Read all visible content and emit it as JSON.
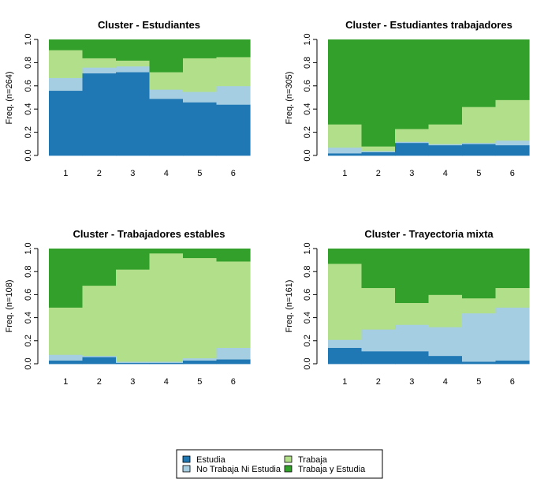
{
  "chart_data": [
    {
      "type": "area",
      "stacked": true,
      "title": "Cluster -  Estudiantes",
      "ylabel": "Freq. (n=264)",
      "categories": [
        "1",
        "2",
        "3",
        "4",
        "5",
        "6"
      ],
      "ylim": [
        0,
        1
      ],
      "yticks": [
        "0.0",
        "0.2",
        "0.4",
        "0.6",
        "0.8",
        "1.0"
      ],
      "series": [
        {
          "name": "Estudia",
          "values": [
            0.56,
            0.71,
            0.72,
            0.49,
            0.46,
            0.44
          ]
        },
        {
          "name": "No Trabaja Ni Estudia",
          "values": [
            0.11,
            0.05,
            0.05,
            0.08,
            0.09,
            0.16
          ]
        },
        {
          "name": "Trabaja",
          "values": [
            0.24,
            0.08,
            0.05,
            0.15,
            0.29,
            0.25
          ]
        },
        {
          "name": "Trabaja y Estudia",
          "values": [
            0.09,
            0.16,
            0.18,
            0.28,
            0.16,
            0.15
          ]
        }
      ]
    },
    {
      "type": "area",
      "stacked": true,
      "title": "Cluster -  Estudiantes trabajadores",
      "ylabel": "Freq. (n=305)",
      "categories": [
        "1",
        "2",
        "3",
        "4",
        "5",
        "6"
      ],
      "ylim": [
        0,
        1
      ],
      "yticks": [
        "0.0",
        "0.2",
        "0.4",
        "0.6",
        "0.8",
        "1.0"
      ],
      "series": [
        {
          "name": "Estudia",
          "values": [
            0.02,
            0.03,
            0.11,
            0.09,
            0.1,
            0.09
          ]
        },
        {
          "name": "No Trabaja Ni Estudia",
          "values": [
            0.05,
            0.01,
            0.01,
            0.01,
            0.01,
            0.04
          ]
        },
        {
          "name": "Trabaja",
          "values": [
            0.2,
            0.04,
            0.11,
            0.17,
            0.31,
            0.35
          ]
        },
        {
          "name": "Trabaja y Estudia",
          "values": [
            0.73,
            0.92,
            0.77,
            0.73,
            0.58,
            0.52
          ]
        }
      ]
    },
    {
      "type": "area",
      "stacked": true,
      "title": "Cluster -  Trabajadores estables",
      "ylabel": "Freq. (n=108)",
      "categories": [
        "1",
        "2",
        "3",
        "4",
        "5",
        "6"
      ],
      "ylim": [
        0,
        1
      ],
      "yticks": [
        "0.0",
        "0.2",
        "0.4",
        "0.6",
        "0.8",
        "1.0"
      ],
      "series": [
        {
          "name": "Estudia",
          "values": [
            0.03,
            0.06,
            0.01,
            0.01,
            0.03,
            0.04
          ]
        },
        {
          "name": "No Trabaja Ni Estudia",
          "values": [
            0.05,
            0.01,
            0.01,
            0.01,
            0.02,
            0.1
          ]
        },
        {
          "name": "Trabaja",
          "values": [
            0.41,
            0.61,
            0.8,
            0.94,
            0.87,
            0.75
          ]
        },
        {
          "name": "Trabaja y Estudia",
          "values": [
            0.51,
            0.32,
            0.18,
            0.04,
            0.08,
            0.11
          ]
        }
      ]
    },
    {
      "type": "area",
      "stacked": true,
      "title": "Cluster -  Trayectoria mixta",
      "ylabel": "Freq. (n=161)",
      "categories": [
        "1",
        "2",
        "3",
        "4",
        "5",
        "6"
      ],
      "ylim": [
        0,
        1
      ],
      "yticks": [
        "0.0",
        "0.2",
        "0.4",
        "0.6",
        "0.8",
        "1.0"
      ],
      "series": [
        {
          "name": "Estudia",
          "values": [
            0.14,
            0.11,
            0.11,
            0.07,
            0.02,
            0.03
          ]
        },
        {
          "name": "No Trabaja Ni Estudia",
          "values": [
            0.07,
            0.19,
            0.23,
            0.25,
            0.42,
            0.46
          ]
        },
        {
          "name": "Trabaja",
          "values": [
            0.66,
            0.36,
            0.19,
            0.28,
            0.13,
            0.17
          ]
        },
        {
          "name": "Trabaja y Estudia",
          "values": [
            0.13,
            0.34,
            0.47,
            0.4,
            0.43,
            0.34
          ]
        }
      ]
    }
  ],
  "legend": {
    "placement": "bottom",
    "items": [
      {
        "label": "Estudia",
        "color": "#1f78b4"
      },
      {
        "label": "Trabaja",
        "color": "#b2df8a"
      },
      {
        "label": "No Trabaja Ni Estudia",
        "color": "#a6cee3"
      },
      {
        "label": "Trabaja y Estudia",
        "color": "#33a02c"
      }
    ]
  },
  "colors": [
    "#1f78b4",
    "#a6cee3",
    "#b2df8a",
    "#33a02c"
  ]
}
